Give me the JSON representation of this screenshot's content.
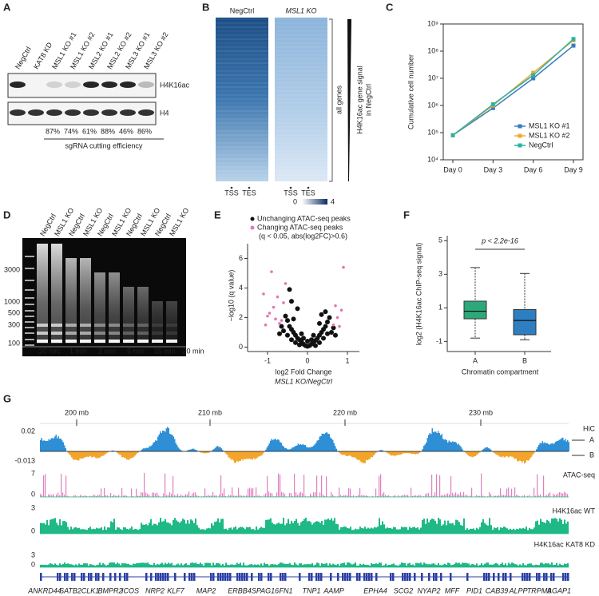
{
  "A": {
    "label": "A",
    "lanes": [
      "NegCtrl",
      "KAT8 KD",
      "MSL1 KO #1",
      "MSL1 KO #2",
      "MSL2 KO #1",
      "MSL2 KO #2",
      "MSL3 KO #1",
      "MSL3 KO #2"
    ],
    "blots": [
      "H4K16ac",
      "H4"
    ],
    "efficiency": [
      "87%",
      "74%",
      "61%",
      "88%",
      "46%",
      "86%"
    ],
    "caption": "sgRNA cutting efficiency"
  },
  "B": {
    "label": "B",
    "samples": [
      "NegCtrl",
      "MSL1 KO"
    ],
    "positions": [
      "TSS",
      "TES"
    ],
    "colorbar": [
      0,
      4
    ],
    "bracket": "all genes",
    "side_label": [
      "H4K16ac gene signal",
      "in NegCtrl"
    ]
  },
  "C": {
    "label": "C",
    "type": "line",
    "categories": [
      "Day 0",
      "Day 3",
      "Day 6",
      "Day 9"
    ],
    "ylabel": "Cumulative cell number",
    "log_scale": true,
    "ylim": [
      10000,
      1000000000
    ],
    "yticks": [
      {
        "value": 10000,
        "label": "10⁴"
      },
      {
        "value": 100000,
        "label": "10⁵"
      },
      {
        "value": 1000000,
        "label": "10⁶"
      },
      {
        "value": 10000000,
        "label": "10⁷"
      },
      {
        "value": 100000000,
        "label": "10⁸"
      },
      {
        "value": 1000000000,
        "label": "10⁹"
      }
    ],
    "series": [
      {
        "name": "MSL1 KO #1",
        "color": "#3a7cc0",
        "values": [
          80000,
          800000,
          10000000,
          160000000
        ]
      },
      {
        "name": "MSL1 KO #2",
        "color": "#f0a830",
        "values": [
          80000,
          1000000,
          16000000,
          250000000
        ]
      },
      {
        "name": "NegCtrl",
        "color": "#2bb3a0",
        "values": [
          80000,
          1100000,
          13000000,
          280000000
        ]
      }
    ],
    "legend": "lower right"
  },
  "D": {
    "label": "D",
    "lanes": [
      "NegCtrl",
      "MSL1 KO",
      "NegCtrl",
      "MSL1 KO",
      "NegCtrl",
      "MSL1 KO",
      "NegCtrl",
      "MSL1 KO",
      "NegCtrl",
      "MSL1 KO"
    ],
    "ladder": [
      3000,
      1000,
      500,
      300,
      100
    ],
    "times": [
      "30 sec",
      "1 min",
      "2 min",
      "5 min",
      "15 min",
      "30 min"
    ]
  },
  "E": {
    "label": "E",
    "type": "scatter",
    "xlim": [
      -1.5,
      1.3
    ],
    "ylim": [
      -0.3,
      7
    ],
    "xticks": [
      -1,
      0,
      1
    ],
    "yticks": [
      0,
      2,
      4,
      6
    ],
    "xlabel": [
      "log2 Fold Change",
      "MSL1 KO/NegCtrl"
    ],
    "ylabel": "−log10 (q value)",
    "series": [
      {
        "name": "Unchanging ATAC-seq peaks",
        "color": "#111111",
        "x": [
          -0.5,
          -0.45,
          -0.4,
          -0.35,
          -0.3,
          -0.25,
          -0.2,
          -0.15,
          -0.1,
          -0.05,
          0,
          0.05,
          0.1,
          0.15,
          0.2,
          0.25,
          0.3,
          0.35,
          0.4,
          0.45,
          0.5,
          0.55,
          -0.55,
          -0.3,
          -0.2,
          0.2,
          0.3,
          -0.4,
          0.4,
          -0.5,
          0.5,
          -0.6,
          0.6,
          -0.45,
          -0.4,
          0.35,
          -0.25,
          0.3,
          -0.35,
          0.45,
          -0.15,
          0.15,
          0,
          -0.1,
          0.1,
          -0.65,
          0.65,
          -0.7,
          0.7
        ],
        "y": [
          1.8,
          1.4,
          1.2,
          1,
          0.8,
          0.6,
          0.5,
          0.35,
          0.2,
          0.1,
          0.05,
          0.1,
          0.2,
          0.3,
          0.45,
          0.6,
          0.8,
          1,
          1.2,
          1.4,
          1.7,
          2,
          2.1,
          0.3,
          0.15,
          0.1,
          0.3,
          0.5,
          0.6,
          0.8,
          0.9,
          1.1,
          1,
          3.9,
          3.1,
          2.2,
          2.6,
          1.6,
          1.9,
          2.4,
          0.9,
          0.8,
          0.4,
          0.6,
          0.5,
          1.4,
          1.3,
          0.9,
          0.8
        ]
      },
      {
        "name": "Changing ATAC-seq peaks",
        "color": "#e377b4",
        "x": [
          -0.9,
          -0.55,
          -0.75,
          -0.6,
          -0.85,
          -0.95,
          -1,
          -0.8,
          -0.7,
          -1.05,
          -0.65,
          0.7,
          0.85,
          0.9,
          0.75,
          0.65,
          0.8,
          -1.1
        ],
        "y": [
          5.1,
          4.3,
          3.4,
          3,
          2.7,
          2.3,
          2.1,
          1.9,
          1.6,
          1.5,
          1.8,
          2.8,
          2.5,
          5.4,
          2,
          1.5,
          1.4,
          3.6
        ]
      }
    ],
    "legend_note": "(q < 0.05, abs(log2FC)>0.6)"
  },
  "F": {
    "label": "F",
    "type": "box",
    "categories": [
      "A",
      "B"
    ],
    "colors": [
      "#2ca87a",
      "#2d7fc1"
    ],
    "boxes": [
      {
        "min": -0.8,
        "q1": 0.35,
        "median": 0.8,
        "q3": 1.4,
        "max": 3.4
      },
      {
        "min": -0.9,
        "q1": -0.6,
        "median": 0.25,
        "q3": 0.9,
        "max": 3.05
      }
    ],
    "ylim": [
      -1.6,
      5.3
    ],
    "yticks": [
      -1,
      1,
      3,
      5
    ],
    "ylabel": "log2 (H4K16ac ChIP-seq signal)",
    "xlabel": "Chromatin compartment",
    "annotation": "p < 2.2e-16"
  },
  "G": {
    "label": "G",
    "positions": [
      "200 mb",
      "210 mb",
      "220 mb",
      "230 mb"
    ],
    "tracks": [
      {
        "name": "HiC",
        "scale": [
          0.02,
          -0.013
        ]
      },
      {
        "name": "ATAC-seq",
        "scale": [
          7,
          0
        ]
      },
      {
        "name": "H4K16ac WT",
        "scale": [
          3,
          0
        ]
      },
      {
        "name": "H4K16ac KAT8 KD",
        "scale": [
          3,
          0
        ]
      }
    ],
    "compartments": [
      "A",
      "B"
    ],
    "genes": [
      "ANKRD44",
      "SATB2",
      "CLK1",
      "BMPR2",
      "ICOS",
      "NRP2",
      "KLF7",
      "MAP2",
      "ERBB4",
      "SPAG16",
      "FN1",
      "TNP1",
      "AAMP",
      "EPHA4",
      "SCG2",
      "NYAP2",
      "MFF",
      "PID1",
      "CAB39",
      "ALPP",
      "TRPM8",
      "AGAP1"
    ]
  }
}
